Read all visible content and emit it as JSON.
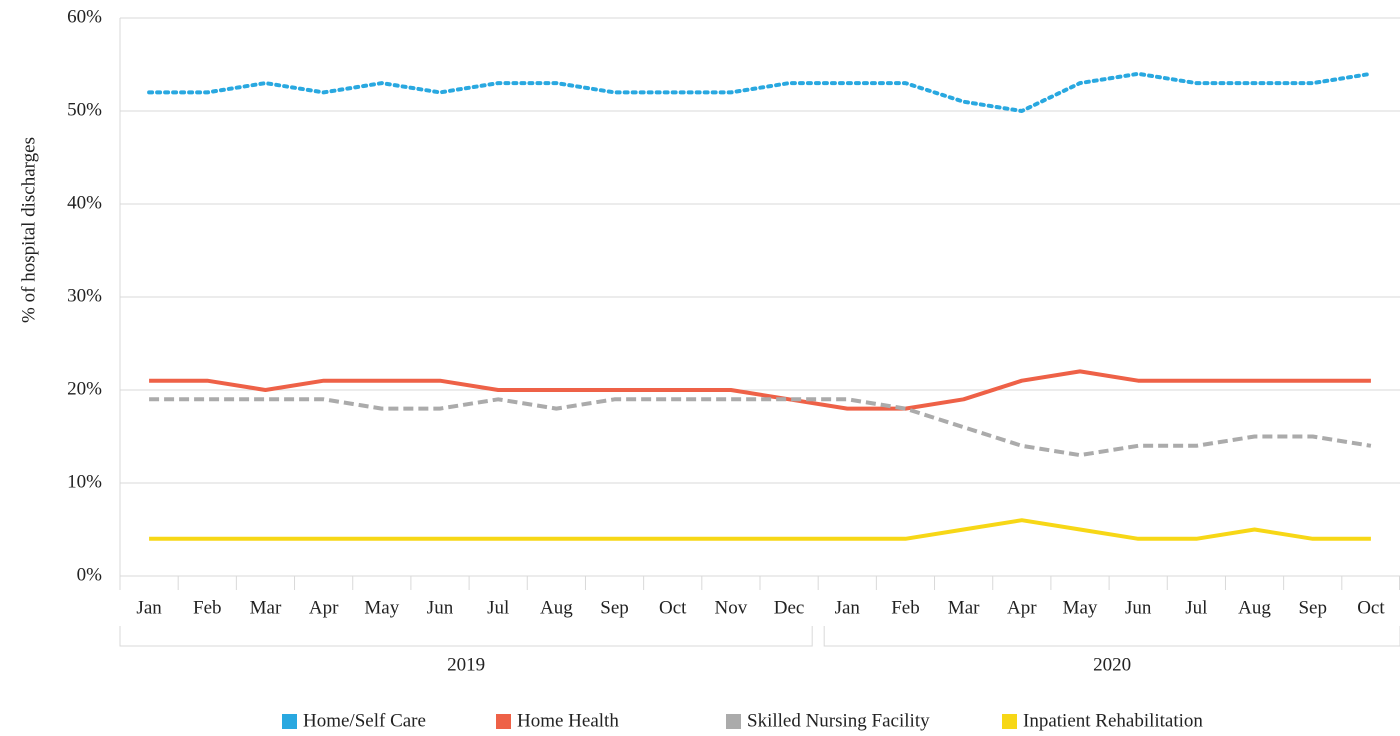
{
  "chart_data": {
    "type": "line",
    "y_label": "% of hospital discharges",
    "groups": [
      {
        "name": "2019",
        "categories": [
          "Jan",
          "Feb",
          "Mar",
          "Apr",
          "May",
          "Jun",
          "Jul",
          "Aug",
          "Sep",
          "Oct",
          "Nov",
          "Dec"
        ]
      },
      {
        "name": "2020",
        "categories": [
          "Jan",
          "Feb",
          "Mar",
          "Apr",
          "May",
          "Jun",
          "Jul",
          "Aug",
          "Sep",
          "Oct"
        ]
      }
    ],
    "series": [
      {
        "name": "Home/Self Care",
        "color": "#29a8e0",
        "style": "dotted",
        "values": [
          52,
          52,
          53,
          52,
          53,
          52,
          53,
          53,
          52,
          52,
          52,
          53,
          53,
          53,
          51,
          50,
          53,
          54,
          53,
          53,
          53,
          54
        ]
      },
      {
        "name": "Home Health",
        "color": "#ee6147",
        "style": "solid",
        "values": [
          21,
          21,
          20,
          21,
          21,
          21,
          20,
          20,
          20,
          20,
          20,
          19,
          18,
          18,
          19,
          21,
          22,
          21,
          21,
          21,
          21,
          21
        ]
      },
      {
        "name": "Skilled Nursing Facility",
        "color": "#ababab",
        "style": "dashed",
        "values": [
          19,
          19,
          19,
          19,
          18,
          18,
          19,
          18,
          19,
          19,
          19,
          19,
          19,
          18,
          16,
          14,
          13,
          14,
          14,
          15,
          15,
          14
        ]
      },
      {
        "name": "Inpatient Rehabilitation",
        "color": "#f7d716",
        "style": "solid",
        "values": [
          4,
          4,
          4,
          4,
          4,
          4,
          4,
          4,
          4,
          4,
          4,
          4,
          4,
          4,
          5,
          6,
          5,
          4,
          4,
          5,
          4,
          4
        ]
      }
    ],
    "ylim": [
      0,
      60
    ],
    "yticks": [
      {
        "value": 0,
        "label": "0%"
      },
      {
        "value": 10,
        "label": "10%"
      },
      {
        "value": 20,
        "label": "20%"
      },
      {
        "value": 30,
        "label": "30%"
      },
      {
        "value": 40,
        "label": "40%"
      },
      {
        "value": 50,
        "label": "50%"
      },
      {
        "value": 60,
        "label": "60%"
      }
    ],
    "grid": true,
    "legend": "bottom"
  }
}
